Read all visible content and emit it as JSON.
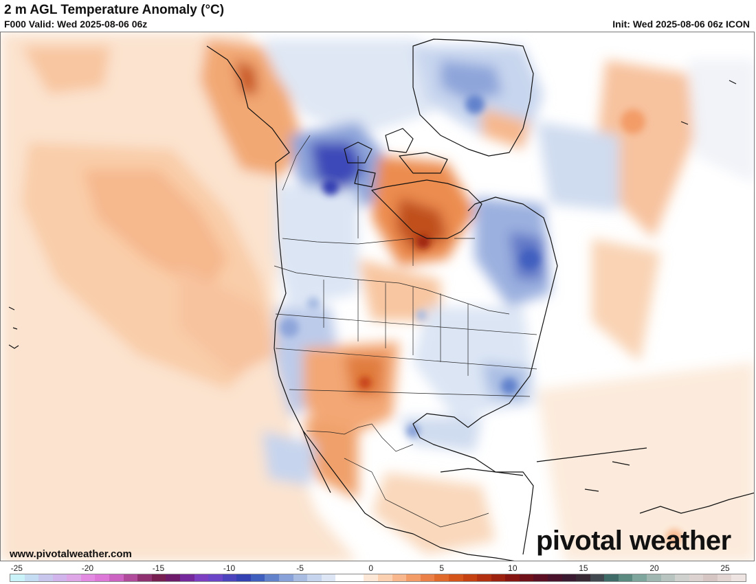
{
  "header": {
    "title": "2 m AGL Temperature Anomaly (°C)",
    "valid": "F000 Valid: Wed 2025-08-06 06z",
    "init": "Init: Wed 2025-08-06 06z ICON"
  },
  "footer": {
    "website": "www.pivotalweather.com",
    "brand": "pivotal weather"
  },
  "colorbar": {
    "tick_labels": [
      "-25",
      "-20",
      "-15",
      "-10",
      "-5",
      "0",
      "5",
      "10",
      "15",
      "20",
      "25"
    ],
    "min": -25,
    "max": 27,
    "unit": "°C",
    "colors": [
      "#c9f3f9",
      "#c4ddf2",
      "#c9c6ee",
      "#d2b4ec",
      "#dea5e7",
      "#e38be3",
      "#dd78d8",
      "#cc63c2",
      "#b04a9a",
      "#8f3170",
      "#781f52",
      "#6d1a6a",
      "#74289b",
      "#7d3fc2",
      "#6a45c8",
      "#4c44bd",
      "#3441b2",
      "#3f5fbf",
      "#6282cc",
      "#88a1d8",
      "#a9bde3",
      "#c6d4ed",
      "#dde6f4",
      "#ffffff",
      "#ffffff",
      "#fde7d6",
      "#fbd1b2",
      "#f8b78c",
      "#f39c68",
      "#eb8048",
      "#e06a2b",
      "#d45419",
      "#c64112",
      "#b2300f",
      "#9c210f",
      "#861512",
      "#701018",
      "#5c0e22",
      "#4a122b",
      "#3a1a30",
      "#372833",
      "#424850",
      "#3f6b68",
      "#5a8a80",
      "#7fa69c",
      "#9fb7b0",
      "#b8c4c0",
      "#cfd1cf",
      "#dcd3d0",
      "#d6c6c3",
      "#e2d5d2",
      "#eee4e2"
    ]
  },
  "map": {
    "region": "North America",
    "field": "2 m temperature anomaly",
    "colors": {
      "warm_light": "#fbe0c8",
      "warm": "#f6b487",
      "warm_strong": "#e98445",
      "hot": "#c0501a",
      "cool_light": "#dde6f4",
      "cool": "#a9bde3",
      "cold": "#5f79c8",
      "cold_strong": "#3b46b5",
      "land_line": "#111111"
    }
  }
}
